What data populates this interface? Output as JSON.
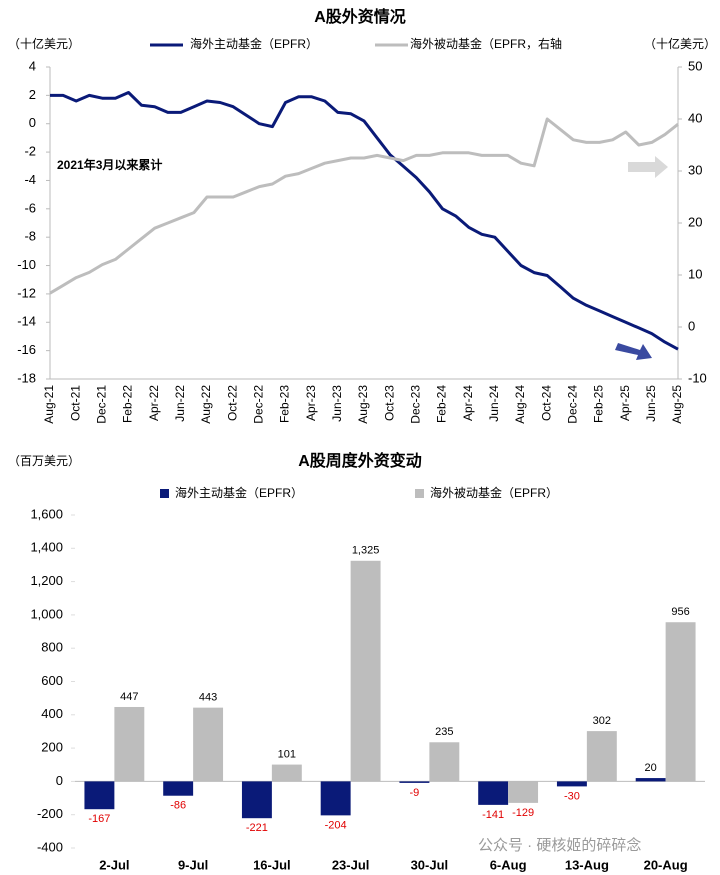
{
  "chart_data": [
    {
      "type": "line",
      "title": "A股外资情况",
      "y_label": "（十亿美元）",
      "y2_label": "（十亿美元）",
      "annotation": "2021年3月以来累计",
      "categories": [
        "Aug-21",
        null,
        "Oct-21",
        null,
        "Dec-21",
        null,
        "Feb-22",
        null,
        "Apr-22",
        null,
        "Jun-22",
        null,
        "Aug-22",
        null,
        "Oct-22",
        null,
        "Dec-22",
        null,
        "Feb-23",
        null,
        "Apr-23",
        null,
        "Jun-23",
        null,
        "Aug-23",
        null,
        "Oct-23",
        null,
        "Dec-23",
        null,
        "Feb-24",
        null,
        "Apr-24",
        null,
        "Jun-24",
        null,
        "Aug-24",
        null,
        "Oct-24",
        null,
        "Dec-24",
        null,
        "Feb-25",
        null,
        "Apr-25",
        null,
        "Jun-25",
        null,
        "Aug-25"
      ],
      "series": [
        {
          "name": "海外主动基金（EPFR）",
          "color": "#0a1a78",
          "values": [
            2.0,
            2.0,
            1.6,
            2.0,
            1.8,
            1.8,
            2.2,
            1.3,
            1.2,
            0.8,
            0.8,
            1.2,
            1.6,
            1.5,
            1.2,
            0.6,
            0.0,
            -0.2,
            1.5,
            1.9,
            1.9,
            1.6,
            0.8,
            0.7,
            0.2,
            -1.0,
            -2.2,
            -3.0,
            -3.8,
            -4.8,
            -6.0,
            -6.5,
            -7.3,
            -7.8,
            -8.0,
            -9.0,
            -10.0,
            -10.5,
            -10.7,
            -11.5,
            -12.3,
            -12.8,
            -13.2,
            -13.6,
            -14.0,
            -14.4,
            -14.8,
            -15.4,
            -15.9
          ]
        },
        {
          "name": "海外被动基金（EPFR，右轴",
          "color": "#bdbdbd",
          "axis": "y2",
          "values": [
            6.5,
            8,
            9.5,
            10.5,
            12,
            13,
            15,
            17,
            19,
            20,
            21,
            22,
            25,
            25,
            25,
            26,
            27,
            27.5,
            29,
            29.5,
            30.5,
            31.5,
            32,
            32.5,
            32.5,
            33,
            32.5,
            32,
            33,
            33,
            33.5,
            33.5,
            33.5,
            33,
            33,
            33,
            31.5,
            31,
            40,
            38,
            36,
            35.5,
            35.5,
            36,
            37.5,
            35,
            35.5,
            37,
            39
          ]
        }
      ],
      "ylim": [
        -18,
        4
      ],
      "yticks": [
        -18,
        -16,
        -14,
        -12,
        -10,
        -8,
        -6,
        -4,
        -2,
        0,
        2,
        4
      ],
      "y2lim": [
        -10,
        50
      ],
      "y2ticks": [
        -10,
        0,
        10,
        20,
        30,
        40,
        50
      ]
    },
    {
      "type": "bar",
      "title": "A股周度外资变动",
      "y_label": "（百万美元）",
      "categories": [
        "2-Jul",
        "9-Jul",
        "16-Jul",
        "23-Jul",
        "30-Jul",
        "6-Aug",
        "13-Aug",
        "20-Aug"
      ],
      "series": [
        {
          "name": "海外主动基金（EPFR）",
          "color": "#0a1a78",
          "values": [
            -167,
            -86,
            -221,
            -204,
            -9,
            -141,
            -30,
            20
          ],
          "value_labels": [
            "-167",
            "-86",
            "-221",
            "-204",
            "-9",
            "-141",
            "-30",
            "20"
          ]
        },
        {
          "name": "海外被动基金（EPFR）",
          "color": "#bdbdbd",
          "values": [
            447,
            443,
            101,
            1325,
            235,
            -129,
            302,
            956
          ],
          "value_labels": [
            "447",
            "443",
            "101",
            "1,325",
            "235",
            "-129",
            "302",
            "956"
          ]
        }
      ],
      "ylim": [
        -400,
        1600
      ],
      "yticks": [
        -400,
        -200,
        0,
        200,
        400,
        600,
        800,
        {
          "value": 1000,
          "label": "1,000"
        },
        {
          "value": 1200,
          "label": "1,200"
        },
        {
          "value": 1400,
          "label": "1,400"
        },
        {
          "value": 1600,
          "label": "1,600"
        }
      ]
    }
  ],
  "watermark": "公众号 · 硬核姬的碎碎念"
}
